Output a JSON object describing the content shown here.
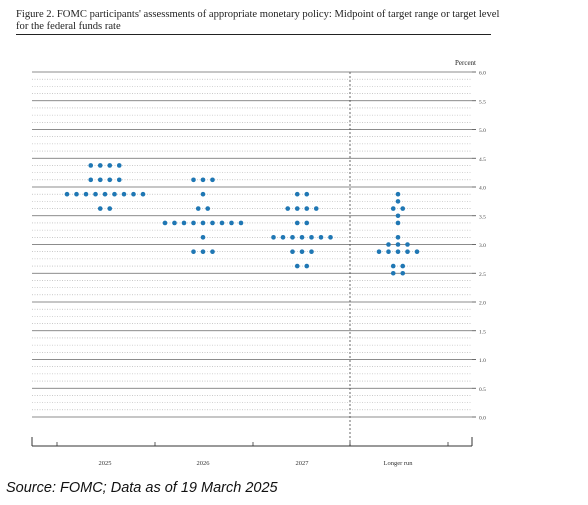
{
  "figure_title": "Figure 2. FOMC participants' assessments of appropriate monetary policy: Midpoint of target range or target level for the federal funds rate",
  "source_note": "Source: FOMC; Data as of 19 March 2025",
  "colors": {
    "dot": "#1f77b4",
    "line": "#555555",
    "text": "#222222"
  },
  "chart_data": {
    "type": "scatter",
    "title": "Figure 2. FOMC participants' assessments of appropriate monetary policy: Midpoint of target range or target level for the federal funds rate",
    "ylabel": "Percent",
    "ylim": [
      0.0,
      6.0
    ],
    "yticks": [
      "0.0",
      "0.5",
      "1.0",
      "1.5",
      "2.0",
      "2.5",
      "3.0",
      "3.5",
      "4.0",
      "4.5",
      "5.0",
      "5.5",
      "6.0"
    ],
    "categories": [
      "2025",
      "2026",
      "2027",
      "Longer run"
    ],
    "grid": true,
    "divider_before": "Longer run",
    "dots": [
      {
        "category": "2025",
        "rows": [
          {
            "y": 4.375,
            "count": 4
          },
          {
            "y": 4.125,
            "count": 4
          },
          {
            "y": 3.875,
            "count": 9
          },
          {
            "y": 3.625,
            "count": 2
          }
        ]
      },
      {
        "category": "2026",
        "rows": [
          {
            "y": 4.125,
            "count": 3
          },
          {
            "y": 3.875,
            "count": 1
          },
          {
            "y": 3.625,
            "count": 2
          },
          {
            "y": 3.375,
            "count": 9
          },
          {
            "y": 3.125,
            "count": 1
          },
          {
            "y": 2.875,
            "count": 3
          }
        ]
      },
      {
        "category": "2027",
        "rows": [
          {
            "y": 3.875,
            "count": 2
          },
          {
            "y": 3.625,
            "count": 4
          },
          {
            "y": 3.375,
            "count": 2
          },
          {
            "y": 3.125,
            "count": 7
          },
          {
            "y": 2.875,
            "count": 3
          },
          {
            "y": 2.625,
            "count": 2
          }
        ]
      },
      {
        "category": "Longer run",
        "rows": [
          {
            "y": 3.875,
            "count": 1
          },
          {
            "y": 3.75,
            "count": 1
          },
          {
            "y": 3.625,
            "count": 2
          },
          {
            "y": 3.5,
            "count": 1
          },
          {
            "y": 3.375,
            "count": 1
          },
          {
            "y": 3.125,
            "count": 1
          },
          {
            "y": 3.0,
            "count": 3
          },
          {
            "y": 2.875,
            "count": 5
          },
          {
            "y": 2.625,
            "count": 2
          },
          {
            "y": 2.5,
            "count": 2
          }
        ]
      }
    ]
  }
}
